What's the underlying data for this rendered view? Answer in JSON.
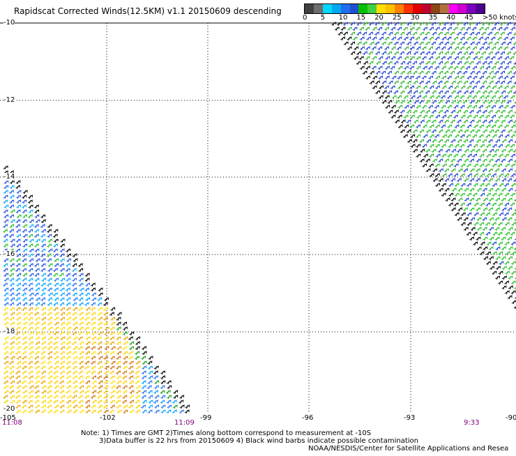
{
  "title": "Rapidscat Corrected Winds(12.5KM) v1.1 20150609 descending",
  "legend": {
    "colors": [
      "#404040",
      "#6e6e6e",
      "#00d8ff",
      "#00a8f0",
      "#1f6ef0",
      "#2050d0",
      "#00c000",
      "#40d040",
      "#ffe000",
      "#ffc000",
      "#ff8000",
      "#ff3000",
      "#e00000",
      "#c00030",
      "#8b4513",
      "#b07040",
      "#ff00ff",
      "#d000d0",
      "#8000c0",
      "#500090"
    ],
    "labels": [
      "0",
      "5",
      "10",
      "15",
      "20",
      "25",
      "30",
      "35",
      "40",
      "45",
      ">50 knots"
    ]
  },
  "axes": {
    "lat_labels": [
      "-10",
      "-12",
      "-14",
      "-16",
      "-18",
      "-20"
    ],
    "lon_labels": [
      "-105",
      "-102",
      "-99",
      "-96",
      "-93",
      "-90"
    ]
  },
  "times": {
    "left": "11:08",
    "mid": "11:09",
    "right": "9:33"
  },
  "notes": {
    "line1": "Note: 1) Times are GMT 2)Times along bottom correspond to measurement at -10S",
    "line2": "3)Data buffer is 22 hrs from 20150609 4) Black wind barbs indicate possible contamination",
    "credit": "NOAA/NESDIS/Center for Satellite Applications and Resea"
  }
}
